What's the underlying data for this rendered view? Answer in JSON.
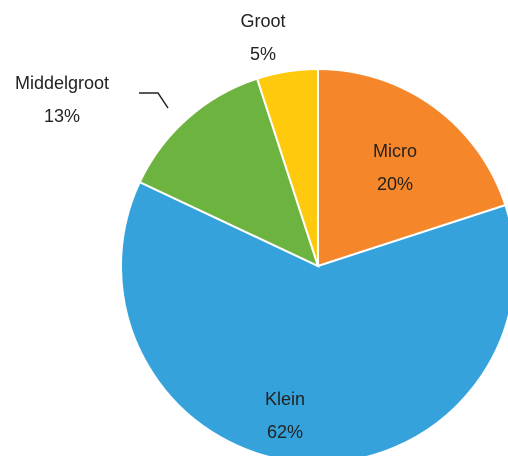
{
  "chart_data": {
    "type": "pie",
    "categories": [
      "Micro",
      "Klein",
      "Middelgroot",
      "Groot"
    ],
    "values": [
      20,
      62,
      13,
      5
    ],
    "value_labels": [
      "20%",
      "62%",
      "13%",
      "5%"
    ],
    "colors": [
      "#f5862a",
      "#36a2db",
      "#6db33f",
      "#ffc90e"
    ]
  }
}
